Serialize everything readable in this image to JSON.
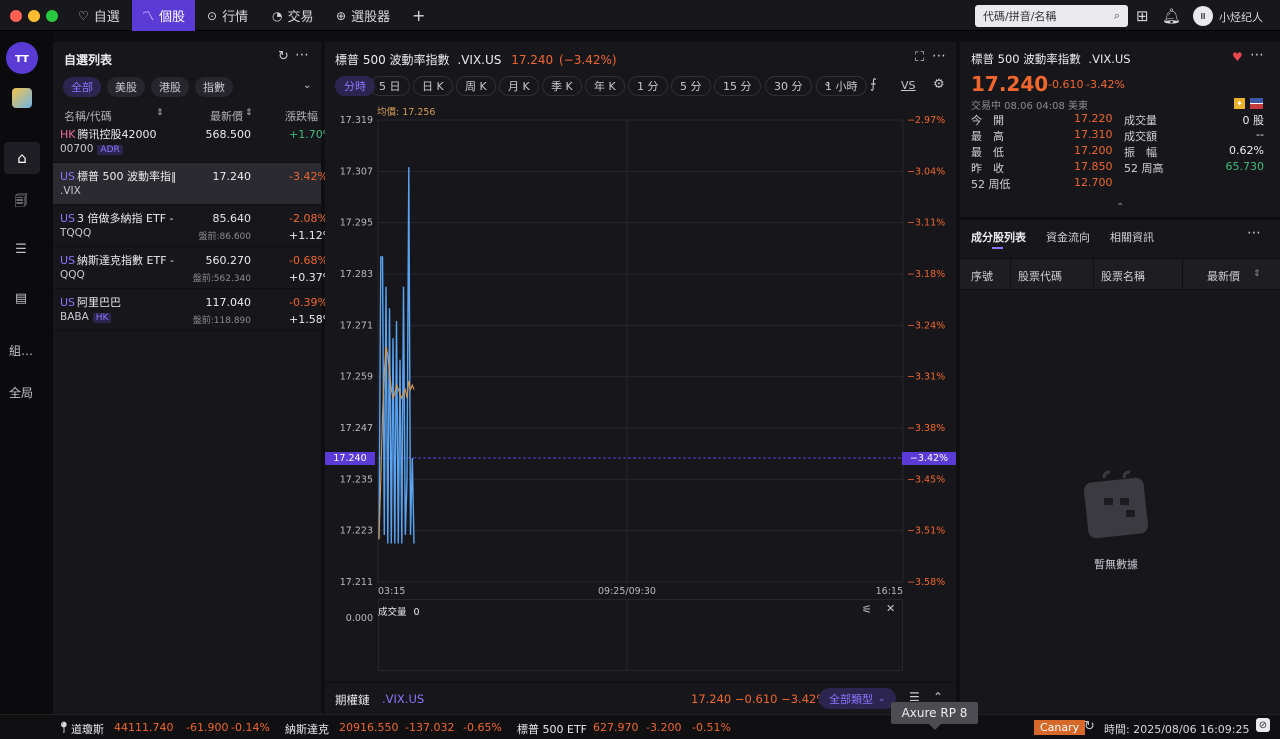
{
  "topbar": {
    "tabs": [
      {
        "icon": "heart-icon",
        "label": "自選"
      },
      {
        "icon": "chart-icon",
        "label": "個股"
      },
      {
        "icon": "radar-icon",
        "label": "行情"
      },
      {
        "icon": "pie-icon",
        "label": "交易"
      },
      {
        "icon": "screener-icon",
        "label": "選股器"
      }
    ],
    "add_label": "+",
    "search_placeholder": "代碼/拼音/名稱",
    "user_name": "小烃纪人",
    "colors": {
      "accent": "#5b3bd6",
      "up": "#3dbb7a",
      "down": "#f0662e"
    }
  },
  "rail": {
    "items": [
      "組…",
      "全局"
    ]
  },
  "watchlist": {
    "title": "自選列表",
    "filters": [
      "全部",
      "美股",
      "港股",
      "指數"
    ],
    "headers": [
      "名稱/代碼",
      "最新價",
      "漲跌幅"
    ],
    "rows": [
      {
        "market": "HK",
        "name": "腾讯控股42000",
        "code": "00700",
        "badge": "ADR",
        "price": "568.500",
        "pre": "",
        "change": "+1.70%",
        "change2": ""
      },
      {
        "market": "US",
        "name": "標普 500 波動率指‖",
        "code": ".VIX",
        "badge": "",
        "price": "17.240",
        "pre": "",
        "change": "-3.42%",
        "change2": ""
      },
      {
        "market": "US",
        "name": "3 倍做多納指 ETF -",
        "code": "TQQQ",
        "badge": "",
        "price": "85.640",
        "pre": "盤前:86.600",
        "change": "-2.08%",
        "change2": "+1.12%"
      },
      {
        "market": "US",
        "name": "納斯達克指數 ETF -",
        "code": "QQQ",
        "badge": "",
        "price": "560.270",
        "pre": "盤前:562.340",
        "change": "-0.68%",
        "change2": "+0.37%"
      },
      {
        "market": "US",
        "name": "阿里巴巴",
        "code": "BABA",
        "badge": "HK",
        "price": "117.040",
        "pre": "盤前:118.890",
        "change": "-0.39%",
        "change2": "+1.58%"
      }
    ]
  },
  "chart": {
    "title": "標普 500 波動率指數",
    "code": ".VIX.US",
    "price": "17.240",
    "change": "(−3.42%)",
    "timeframes": [
      "分時",
      "5 日",
      "日 K",
      "周 K",
      "月 K",
      "季 K",
      "年 K",
      "1 分",
      "5 分",
      "15 分",
      "30 分",
      "1 小時"
    ],
    "vs_label": "VS",
    "avg_label": "均價: 17.256",
    "current_price_label": "17.240",
    "current_pct_label": "−3.42%",
    "volume_label": "成交量",
    "volume_value": "0",
    "volume_axis": "0.000",
    "footer_label": "期權鏈",
    "footer_code": ".VIX.US",
    "footer_quote": "17.240 −0.610 −3.42%",
    "footer_type": "全部類型",
    "tooltip": "Axure RP 8"
  },
  "chart_data": {
    "type": "line",
    "title": "",
    "xlabel": "",
    "ylabel": "",
    "x_ticks": [
      "03:15",
      "09:25/09:30",
      "16:15"
    ],
    "y_ticks": [
      "17.319",
      "17.307",
      "17.295",
      "17.283",
      "17.271",
      "17.259",
      "17.247",
      "17.235",
      "17.223",
      "17.211"
    ],
    "y_ticks_right": [
      "−2.97%",
      "−3.04%",
      "−3.11%",
      "−3.18%",
      "−3.24%",
      "−3.31%",
      "−3.38%",
      "−3.45%",
      "−3.51%",
      "−3.58%"
    ],
    "ylim": [
      17.211,
      17.319
    ],
    "reference_price": 17.24,
    "series": [
      {
        "values": [
          17.221,
          17.287,
          17.287,
          17.222,
          17.28,
          17.22,
          17.275,
          17.22,
          17.268,
          17.22,
          17.272,
          17.22,
          17.263,
          17.22,
          17.28,
          17.222,
          17.235,
          17.308,
          17.222,
          17.24,
          17.22
        ]
      },
      {
        "name": "均價",
        "values": [
          17.221,
          17.235,
          17.25,
          17.26,
          17.266,
          17.264,
          17.26,
          17.256,
          17.254,
          17.255,
          17.257,
          17.256,
          17.255,
          17.254,
          17.255,
          17.256,
          17.254,
          17.258,
          17.256,
          17.257,
          17.256
        ]
      }
    ],
    "grid": true
  },
  "quote": {
    "title": "標普 500 波動率指數",
    "code": ".VIX.US",
    "price": "17.240",
    "change": "-0.610",
    "pct": "-3.42%",
    "status": "交易中 08.06 04:08 美東",
    "left": [
      {
        "label": "今　開",
        "value": "17.220"
      },
      {
        "label": "最　高",
        "value": "17.310"
      },
      {
        "label": "最　低",
        "value": "17.200"
      },
      {
        "label": "昨　收",
        "value": "17.850"
      },
      {
        "label": "52 周低",
        "value": "12.700"
      }
    ],
    "right": [
      {
        "label": "成交量",
        "value": "0 股"
      },
      {
        "label": "成交額",
        "value": "--"
      },
      {
        "label": "振　幅",
        "value": "0.62%"
      },
      {
        "label": "52 周高",
        "value": "65.730"
      }
    ]
  },
  "components": {
    "tabs": [
      "成分股列表",
      "資金流向",
      "相關資訊"
    ],
    "headers": [
      "序號",
      "股票代碼",
      "股票名稱",
      "最新價"
    ],
    "empty_text": "暫無數據"
  },
  "ticker": {
    "items": [
      {
        "name": "道瓊斯",
        "price": "44111.740",
        "change": "-61.900",
        "pct": "-0.14%"
      },
      {
        "name": "納斯達克",
        "price": "20916.550",
        "change": "-137.032",
        "pct": "-0.65%"
      },
      {
        "name": "標普 500 ETF",
        "price": "627.970",
        "change": "-3.200",
        "pct": "-0.51%"
      }
    ],
    "env": "Canary",
    "time": "時間: 2025/08/06 16:09:25"
  }
}
